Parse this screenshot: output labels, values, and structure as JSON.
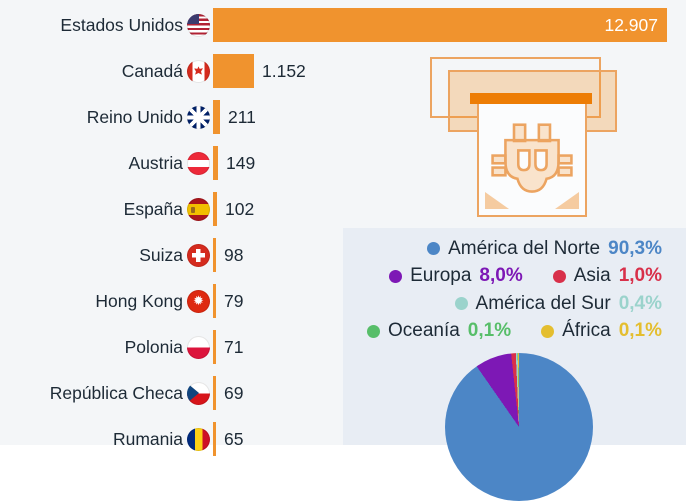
{
  "colors": {
    "page_bg": "#F4F6F8",
    "panel_bg": "#E8EDF4",
    "bar_orange": "#F0932E",
    "slot_orange": "#ED7D05",
    "outline_orange": "#ECA461",
    "text_navy": "#1D2A36",
    "bar_value_inside": "#FFFFFF"
  },
  "icons": {
    "illustration": "bitcoin-atm-icon",
    "flags": [
      "us-flag-icon",
      "canada-flag-icon",
      "uk-flag-icon",
      "austria-flag-icon",
      "spain-flag-icon",
      "switzerland-flag-icon",
      "hong-kong-flag-icon",
      "poland-flag-icon",
      "czech-republic-flag-icon",
      "romania-flag-icon"
    ]
  },
  "chart_data": [
    {
      "type": "bar",
      "orientation": "horizontal",
      "title": "",
      "categories": [
        "Estados Unidos",
        "Canadá",
        "Reino Unido",
        "Austria",
        "España",
        "Suiza",
        "Hong Kong",
        "Polonia",
        "República Checa",
        "Rumania"
      ],
      "values": [
        12907,
        1152,
        211,
        149,
        102,
        98,
        79,
        71,
        69,
        65
      ],
      "value_labels": [
        "12.907",
        "1.152",
        "211",
        "149",
        "102",
        "98",
        "79",
        "71",
        "69",
        "65"
      ],
      "flags": [
        "us",
        "ca",
        "gb",
        "at",
        "es",
        "ch",
        "hk",
        "pl",
        "cz",
        "ro"
      ],
      "bar_color": "#F0932E",
      "xlim": [
        0,
        12907
      ],
      "value_label_inside_first_bar": true,
      "grid": false
    },
    {
      "type": "pie",
      "title": "",
      "labels": [
        "América del Norte",
        "Europa",
        "Asia",
        "América del Sur",
        "Oceanía",
        "África"
      ],
      "values": [
        90.3,
        8.0,
        1.0,
        0.4,
        0.1,
        0.1
      ],
      "value_labels": [
        "90,3%",
        "8,0%",
        "1,0%",
        "0,4%",
        "0,1%",
        "0,1%"
      ],
      "colors": [
        "#4C86C6",
        "#7D18B5",
        "#D8304A",
        "#9BD3CC",
        "#57BE69",
        "#E4BE2F"
      ],
      "legend_position": "above-pie",
      "legend_lines": [
        [
          0
        ],
        [
          1,
          2
        ],
        [
          3
        ],
        [
          4,
          5
        ]
      ],
      "start_angle_deg": 0,
      "direction": "clockwise"
    }
  ]
}
